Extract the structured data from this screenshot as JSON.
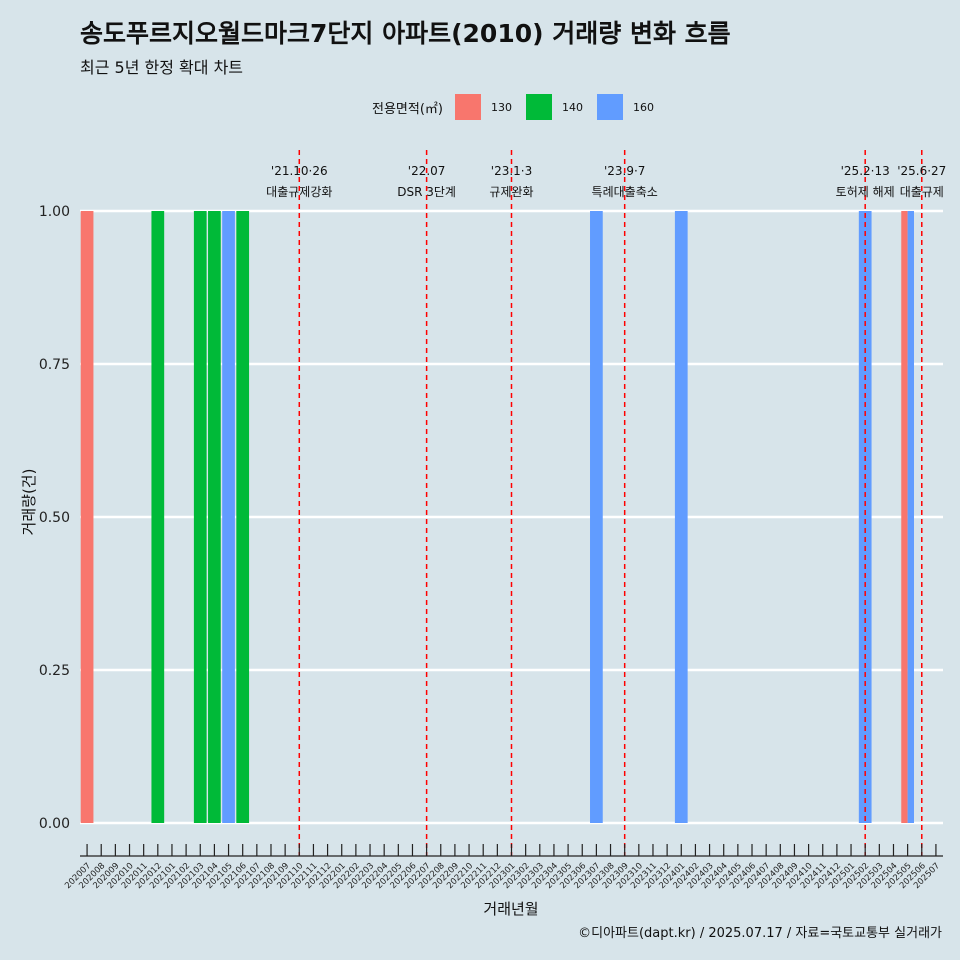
{
  "title": "송도푸르지오월드마크7단지 아파트(2010) 거래량 변화 흐름",
  "subtitle": "최근 5년 한정 확대 차트",
  "credit": "©디아파트(dapt.kr) / 2025.07.17 / 자료=국토교통부 실거래가",
  "legend": {
    "title": "전용면적(㎡)",
    "items": [
      {
        "label": "130",
        "color": "#f8766d"
      },
      {
        "label": "140",
        "color": "#00ba38"
      },
      {
        "label": "160",
        "color": "#619cff"
      }
    ]
  },
  "chart_data": {
    "type": "bar",
    "xlabel": "거래년월",
    "ylabel": "거래량(건)",
    "ylim": [
      0,
      1
    ],
    "yticks": [
      "0.00",
      "0.25",
      "0.50",
      "0.75",
      "1.00"
    ],
    "categories": [
      "202007",
      "202008",
      "202009",
      "202010",
      "202011",
      "202012",
      "202101",
      "202102",
      "202103",
      "202104",
      "202105",
      "202106",
      "202107",
      "202108",
      "202109",
      "202110",
      "202111",
      "202112",
      "202201",
      "202202",
      "202203",
      "202204",
      "202205",
      "202206",
      "202207",
      "202208",
      "202209",
      "202210",
      "202211",
      "202212",
      "202301",
      "202302",
      "202303",
      "202304",
      "202305",
      "202306",
      "202307",
      "202308",
      "202309",
      "202310",
      "202311",
      "202312",
      "202401",
      "202402",
      "202403",
      "202404",
      "202405",
      "202406",
      "202407",
      "202408",
      "202409",
      "202410",
      "202411",
      "202412",
      "202501",
      "202502",
      "202503",
      "202504",
      "202505",
      "202506",
      "202507"
    ],
    "bars": [
      {
        "month": "202007",
        "area": "130",
        "value": 1
      },
      {
        "month": "202012",
        "area": "140",
        "value": 1
      },
      {
        "month": "202103",
        "area": "140",
        "value": 1
      },
      {
        "month": "202104",
        "area": "140",
        "value": 1
      },
      {
        "month": "202105",
        "area": "160",
        "value": 1
      },
      {
        "month": "202106",
        "area": "140",
        "value": 1
      },
      {
        "month": "202307",
        "area": "160",
        "value": 1
      },
      {
        "month": "202401",
        "area": "160",
        "value": 1
      },
      {
        "month": "202502",
        "area": "160",
        "value": 1
      },
      {
        "month": "202505",
        "area": "130",
        "value": 1
      },
      {
        "month": "202505",
        "area": "160",
        "value": 1
      }
    ],
    "events": [
      {
        "month": "202110",
        "date": "'21.10·26",
        "label": "대출규제강화"
      },
      {
        "month": "202207",
        "date": "'22.07",
        "label": "DSR 3단계"
      },
      {
        "month": "202301",
        "date": "'23.1·3",
        "label": "규제완화"
      },
      {
        "month": "202309",
        "date": "'23.9·7",
        "label": "특례대출축소"
      },
      {
        "month": "202502",
        "date": "'25.2·13",
        "label": "토허제 해제"
      },
      {
        "month": "202506",
        "date": "'25.6·27",
        "label": "대출규제"
      }
    ]
  }
}
